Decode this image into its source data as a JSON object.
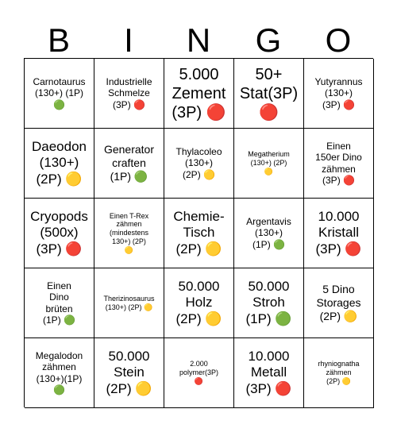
{
  "header": [
    "B",
    "I",
    "N",
    "G",
    "O"
  ],
  "cells": [
    {
      "text": "Carnotaurus\n(130+) (1P)\n🟢",
      "size": "s-s"
    },
    {
      "text": "Industrielle\nSchmelze\n(3P) 🔴",
      "size": "s-s"
    },
    {
      "text": "5.000\nZement\n(3P) 🔴",
      "size": "s-xl"
    },
    {
      "text": "50+\nStat(3P)\n🔴",
      "size": "s-xl"
    },
    {
      "text": "Yutyrannus\n(130+)\n(3P) 🔴",
      "size": "s-s"
    },
    {
      "text": "Daeodon\n(130+)\n(2P) 🟡",
      "size": "s-l"
    },
    {
      "text": "Generator\ncraften\n(1P) 🟢",
      "size": "s-m"
    },
    {
      "text": "Thylacoleo\n(130+)\n(2P) 🟡",
      "size": "s-s"
    },
    {
      "text": "Megatherium\n(130+) (2P)\n🟡",
      "size": "s-xs"
    },
    {
      "text": "Einen\n150er Dino\nzähmen\n(3P) 🔴",
      "size": "s-s"
    },
    {
      "text": "Cryopods\n(500x)\n(3P) 🔴",
      "size": "s-l"
    },
    {
      "text": "Einen T-Rex\nzähmen\n(mindestens\n130+) (2P)\n🟡",
      "size": "s-xs"
    },
    {
      "text": "Chemie-\nTisch\n(2P) 🟡",
      "size": "s-l"
    },
    {
      "text": "Argentavis\n(130+)\n(1P) 🟢",
      "size": "s-s"
    },
    {
      "text": "10.000\nKristall\n(3P) 🔴",
      "size": "s-l"
    },
    {
      "text": "Einen\nDino\nbrüten\n(1P) 🟢",
      "size": "s-s"
    },
    {
      "text": "Therizinosaurus\n(130+) (2P) 🟡",
      "size": "s-xs"
    },
    {
      "text": "50.000\nHolz\n(2P) 🟡",
      "size": "s-l"
    },
    {
      "text": "50.000\nStroh\n(1P) 🟢",
      "size": "s-l"
    },
    {
      "text": "5 Dino\nStorages\n(2P) 🟡",
      "size": "s-m"
    },
    {
      "text": "Megalodon\nzähmen\n(130+)(1P)\n🟢",
      "size": "s-s"
    },
    {
      "text": "50.000\nStein\n(2P) 🟡",
      "size": "s-l"
    },
    {
      "text": "2.000\npolymer(3P)\n🔴",
      "size": "s-xs"
    },
    {
      "text": "10.000\nMetall\n(3P) 🔴",
      "size": "s-l"
    },
    {
      "text": "rhyniognatha\nzähmen\n(2P) 🟡",
      "size": "s-xs"
    }
  ]
}
